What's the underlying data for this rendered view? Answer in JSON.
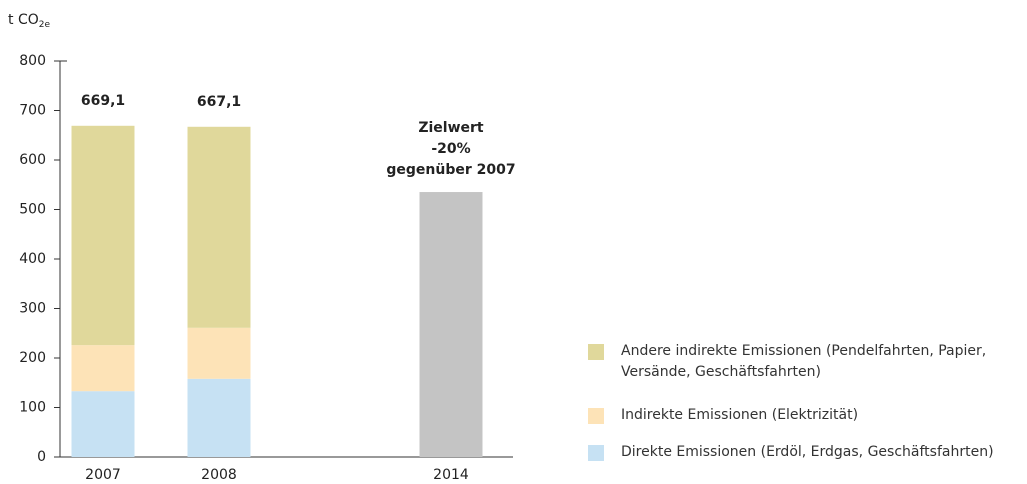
{
  "chart_data": {
    "type": "stacked_bar",
    "y_label": "t CO",
    "y_label_sub": "2e",
    "categories": [
      "2007",
      "2008",
      null,
      "2014"
    ],
    "series": [
      {
        "name": "Direkte Emissionen (Erdöl, Erdgas, Geschäftsfahrten)",
        "color": "#c6e1f3",
        "values": [
          133,
          158,
          null,
          null
        ]
      },
      {
        "name": "Indirekte Emissionen (Elektrizität)",
        "color": "#fde3b7",
        "values": [
          93,
          103,
          null,
          null
        ]
      },
      {
        "name": "Andere indirekte Emissionen (Pendelfahrten, Papier, Versände, Geschäftsfahrten)",
        "color": "#e0d89b",
        "values": [
          443.1,
          406.1,
          null,
          null
        ]
      }
    ],
    "target_values": [
      null,
      null,
      null,
      535.3
    ],
    "target_color": "#c4c4c4",
    "totals": [
      669.1,
      667.1,
      null,
      null
    ],
    "value_labels": [
      "669,1",
      "667,1",
      null,
      null
    ],
    "annotation": [
      "Zielwert",
      "-20%",
      "gegenüber 2007"
    ],
    "ylim": [
      0,
      800
    ],
    "yticks": [
      0,
      100,
      200,
      300,
      400,
      500,
      600,
      700,
      800
    ]
  }
}
